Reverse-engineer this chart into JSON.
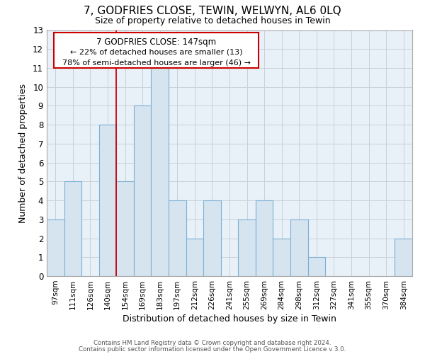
{
  "title": "7, GODFRIES CLOSE, TEWIN, WELWYN, AL6 0LQ",
  "subtitle": "Size of property relative to detached houses in Tewin",
  "xlabel": "Distribution of detached houses by size in Tewin",
  "ylabel": "Number of detached properties",
  "footer_line1": "Contains HM Land Registry data © Crown copyright and database right 2024.",
  "footer_line2": "Contains public sector information licensed under the Open Government Licence v 3.0.",
  "categories": [
    "97sqm",
    "111sqm",
    "126sqm",
    "140sqm",
    "154sqm",
    "169sqm",
    "183sqm",
    "197sqm",
    "212sqm",
    "226sqm",
    "241sqm",
    "255sqm",
    "269sqm",
    "284sqm",
    "298sqm",
    "312sqm",
    "327sqm",
    "341sqm",
    "355sqm",
    "370sqm",
    "384sqm"
  ],
  "values": [
    3,
    5,
    0,
    8,
    5,
    9,
    11,
    4,
    2,
    4,
    0,
    3,
    4,
    2,
    3,
    1,
    0,
    0,
    0,
    0,
    2
  ],
  "bar_color": "#d6e4f0",
  "bar_edge_color": "#7bafd4",
  "property_line_bin_index": 3.5,
  "annotation_text_line1": "7 GODFRIES CLOSE: 147sqm",
  "annotation_text_line2": "← 22% of detached houses are smaller (13)",
  "annotation_text_line3": "78% of semi-detached houses are larger (46) →",
  "annotation_box_edge_color": "#cc0000",
  "vline_color": "#cc0000",
  "ylim": [
    0,
    13
  ],
  "yticks": [
    0,
    1,
    2,
    3,
    4,
    5,
    6,
    7,
    8,
    9,
    10,
    11,
    12,
    13
  ],
  "grid_color": "#c8d0d8",
  "background_color": "white"
}
